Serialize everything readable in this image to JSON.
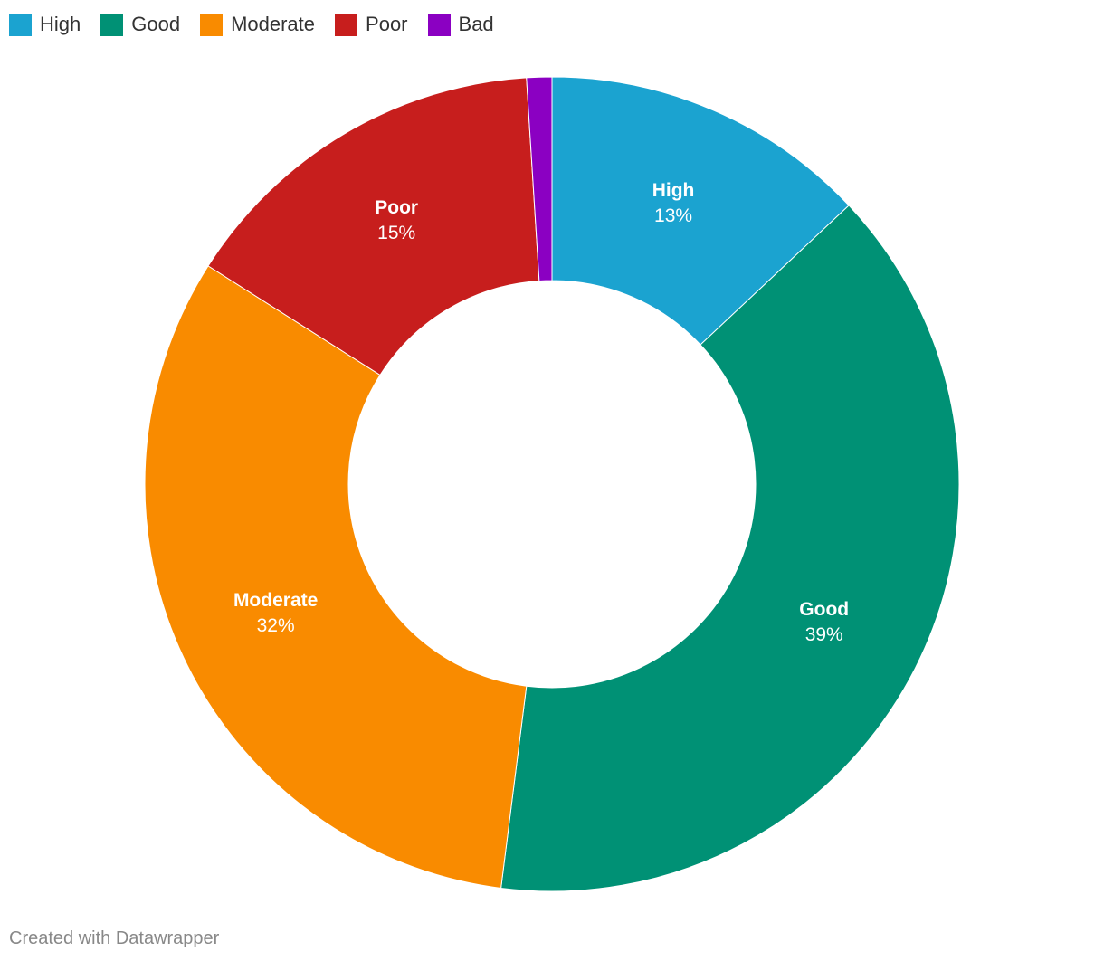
{
  "chart_data": {
    "type": "donut",
    "categories": [
      "High",
      "Good",
      "Moderate",
      "Poor",
      "Bad"
    ],
    "values": [
      13,
      39,
      32,
      15,
      1
    ],
    "value_labels": [
      "13%",
      "39%",
      "32%",
      "15%",
      null
    ],
    "colors": [
      "#1ba3d0",
      "#009175",
      "#f98b00",
      "#c71e1d",
      "#8b00c2"
    ],
    "legend": "top-left",
    "credit": "Created with Datawrapper"
  }
}
